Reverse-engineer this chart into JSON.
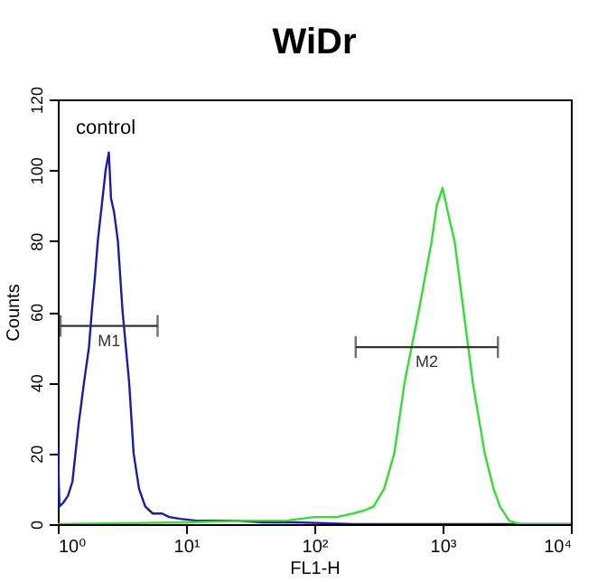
{
  "chart_data": {
    "type": "line",
    "title": "WiDr",
    "xlabel": "FL1-H",
    "ylabel": "Counts",
    "log": "x",
    "xlim": [
      1,
      10000
    ],
    "xticks": [
      {
        "value": 1,
        "label": "10⁰"
      },
      {
        "value": 10,
        "label": "10¹"
      },
      {
        "value": 100,
        "label": "10²"
      },
      {
        "value": 1000,
        "label": "10³"
      },
      {
        "value": 10000,
        "label": "10⁴"
      }
    ],
    "ylim": [
      0,
      120
    ],
    "yticks": [
      0,
      20,
      40,
      60,
      80,
      100,
      120
    ],
    "series": [
      {
        "name": "control",
        "color": "#1c1ca0",
        "x": [
          1,
          1.03,
          1.1,
          1.2,
          1.3,
          1.45,
          1.6,
          1.75,
          1.84,
          1.95,
          2.05,
          2.2,
          2.36,
          2.5,
          2.6,
          2.75,
          2.94,
          3.2,
          3.6,
          3.9,
          4.3,
          4.8,
          5.5,
          6.5,
          7.4,
          9,
          12,
          16,
          25,
          40,
          70,
          120,
          200,
          500,
          1000,
          10000
        ],
        "values": [
          22,
          5,
          6,
          8,
          12,
          28,
          40,
          50,
          60,
          70,
          80,
          90,
          100,
          105,
          92,
          88,
          80,
          60,
          40,
          20,
          10,
          5,
          3,
          3,
          2,
          1.5,
          1,
          1,
          1,
          0.5,
          0.5,
          0.3,
          0,
          0,
          0,
          0
        ]
      },
      {
        "color": "#33dd33",
        "x": [
          1,
          10,
          30,
          60,
          100,
          150,
          200,
          250,
          290,
          350,
          420,
          505,
          650,
          822,
          900,
          1000,
          1100,
          1240,
          1460,
          1720,
          2130,
          2500,
          2800,
          3300,
          4000,
          10000
        ],
        "values": [
          0,
          0.5,
          1,
          1,
          2,
          2,
          3,
          4,
          5,
          10,
          20,
          40,
          60,
          80,
          90,
          95,
          88,
          80,
          60,
          40,
          20,
          10,
          5,
          1,
          0,
          0
        ]
      },
      {
        "name": "M1",
        "color": "#333333",
        "x": [
          1.05,
          6
        ],
        "values": [
          56,
          56
        ]
      },
      {
        "name": "M2",
        "color": "#333333",
        "x": [
          210,
          2700
        ],
        "values": [
          50,
          50
        ]
      }
    ],
    "grid": false
  }
}
